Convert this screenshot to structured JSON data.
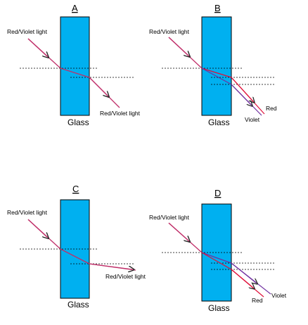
{
  "panels": {
    "A": {
      "letter": "A",
      "incident_label": "Red/Violet light",
      "exit_label": "Red/Violet light",
      "glass_label": "Glass"
    },
    "B": {
      "letter": "B",
      "incident_label": "Red/Violet light",
      "red_label": "Red",
      "violet_label": "Violet",
      "glass_label": "Glass"
    },
    "C": {
      "letter": "C",
      "incident_label": "Red/Violet light",
      "exit_label": "Red/Violet light",
      "glass_label": "Glass"
    },
    "D": {
      "letter": "D",
      "incident_label": "Red/Violet light",
      "red_label": "Red",
      "violet_label": "Violet",
      "glass_label": "Glass"
    }
  },
  "colors": {
    "glass_fill": "#00B0F0",
    "glass_stroke": "#000000",
    "red_ray": "#E0103A",
    "violet_ray": "#7030A0",
    "combined_ray": "#C0306A",
    "normal_line": "#000000"
  }
}
